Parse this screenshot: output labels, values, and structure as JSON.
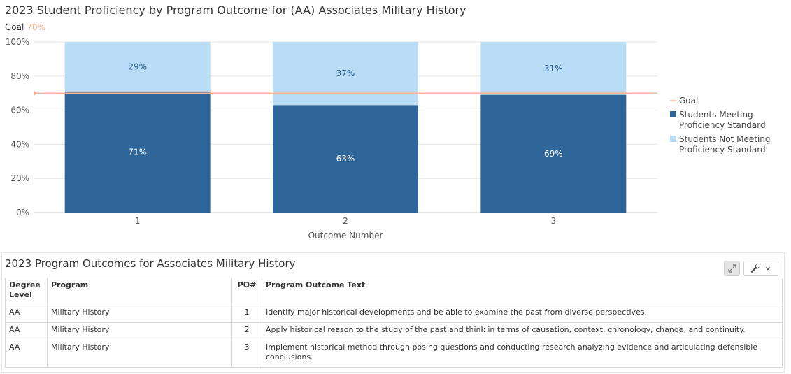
{
  "chart_data": {
    "type": "bar",
    "stacked": true,
    "title": "2023 Student Proficiency by Program Outcome for (AA) Associates Military History",
    "goal_caption_label": "Goal",
    "goal_caption_value": "70%",
    "goal_value": 70,
    "categories": [
      "1",
      "2",
      "3"
    ],
    "xlabel": "Outcome Number",
    "ylabel": "",
    "ylim": [
      0,
      100
    ],
    "y_ticks": [
      "0%",
      "20%",
      "40%",
      "60%",
      "80%",
      "100%"
    ],
    "grid": true,
    "legend_position": "right",
    "series": [
      {
        "name": "Students Meeting Proficiency Standard",
        "values": [
          71,
          63,
          69
        ],
        "labels": [
          "71%",
          "63%",
          "69%"
        ],
        "color": "#2f6699"
      },
      {
        "name": "Students Not Meeting Proficiency Standard",
        "values": [
          29,
          37,
          31
        ],
        "labels": [
          "29%",
          "37%",
          "31%"
        ],
        "color": "#b8dcf5"
      }
    ],
    "legend": [
      {
        "kind": "line",
        "lines": [
          "Goal"
        ],
        "color": "#f5b69f"
      },
      {
        "kind": "box",
        "lines": [
          "Students Meeting",
          "Proficiency Standard"
        ],
        "color": "#2f6699"
      },
      {
        "kind": "box",
        "lines": [
          "Students Not Meeting",
          "Proficiency Standard"
        ],
        "color": "#b8dcf5"
      }
    ]
  },
  "table": {
    "title": "2023 Program Outcomes for Associates Military History",
    "headers": {
      "degree_line1": "Degree",
      "degree_line2": "Level",
      "program": "Program",
      "po": "PO#",
      "text": "Program Outcome Text"
    },
    "rows": [
      {
        "degree": "AA",
        "program": "Military History",
        "po": "1",
        "text": "Identify major historical developments and be able to examine the past from diverse perspectives."
      },
      {
        "degree": "AA",
        "program": "Military History",
        "po": "2",
        "text": "Apply historical reason to the study of the past and think in terms of causation, context, chronology, change, and continuity."
      },
      {
        "degree": "AA",
        "program": "Military History",
        "po": "3",
        "text": "Implement historical method through posing questions and conducting research analyzing evidence and articulating defensible conclusions."
      }
    ]
  },
  "toolbar": {
    "expand_icon": "expand-icon",
    "wrench_icon": "wrench-icon",
    "dropdown_icon": "chevron-down-icon"
  }
}
